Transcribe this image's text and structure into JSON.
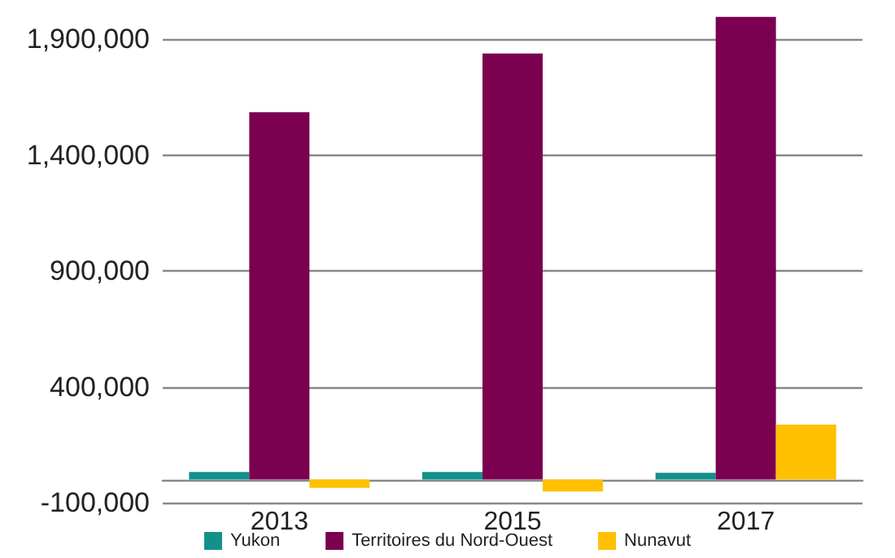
{
  "chart_data": {
    "type": "bar",
    "categories": [
      "2013",
      "2015",
      "2017"
    ],
    "series": [
      {
        "name": "Yukon",
        "color": "#12918b",
        "values": [
          33000,
          33000,
          29000
        ]
      },
      {
        "name": "Territoires du Nord-Ouest",
        "color": "#7b0150",
        "values": [
          1586000,
          1839000,
          1997000
        ]
      },
      {
        "name": "Nunavut",
        "color": "#ffc000",
        "values": [
          -36000,
          -52000,
          237000
        ]
      }
    ],
    "ylim": [
      -100000,
      2000000
    ],
    "yticks": [
      {
        "value": -100000,
        "label": "-100,000"
      },
      {
        "value": 400000,
        "label": "400,000"
      },
      {
        "value": 900000,
        "label": "900,000"
      },
      {
        "value": 1400000,
        "label": "1,400,000"
      },
      {
        "value": 1900000,
        "label": "1,900,000"
      }
    ],
    "grid": "y",
    "legend": "bottom"
  }
}
